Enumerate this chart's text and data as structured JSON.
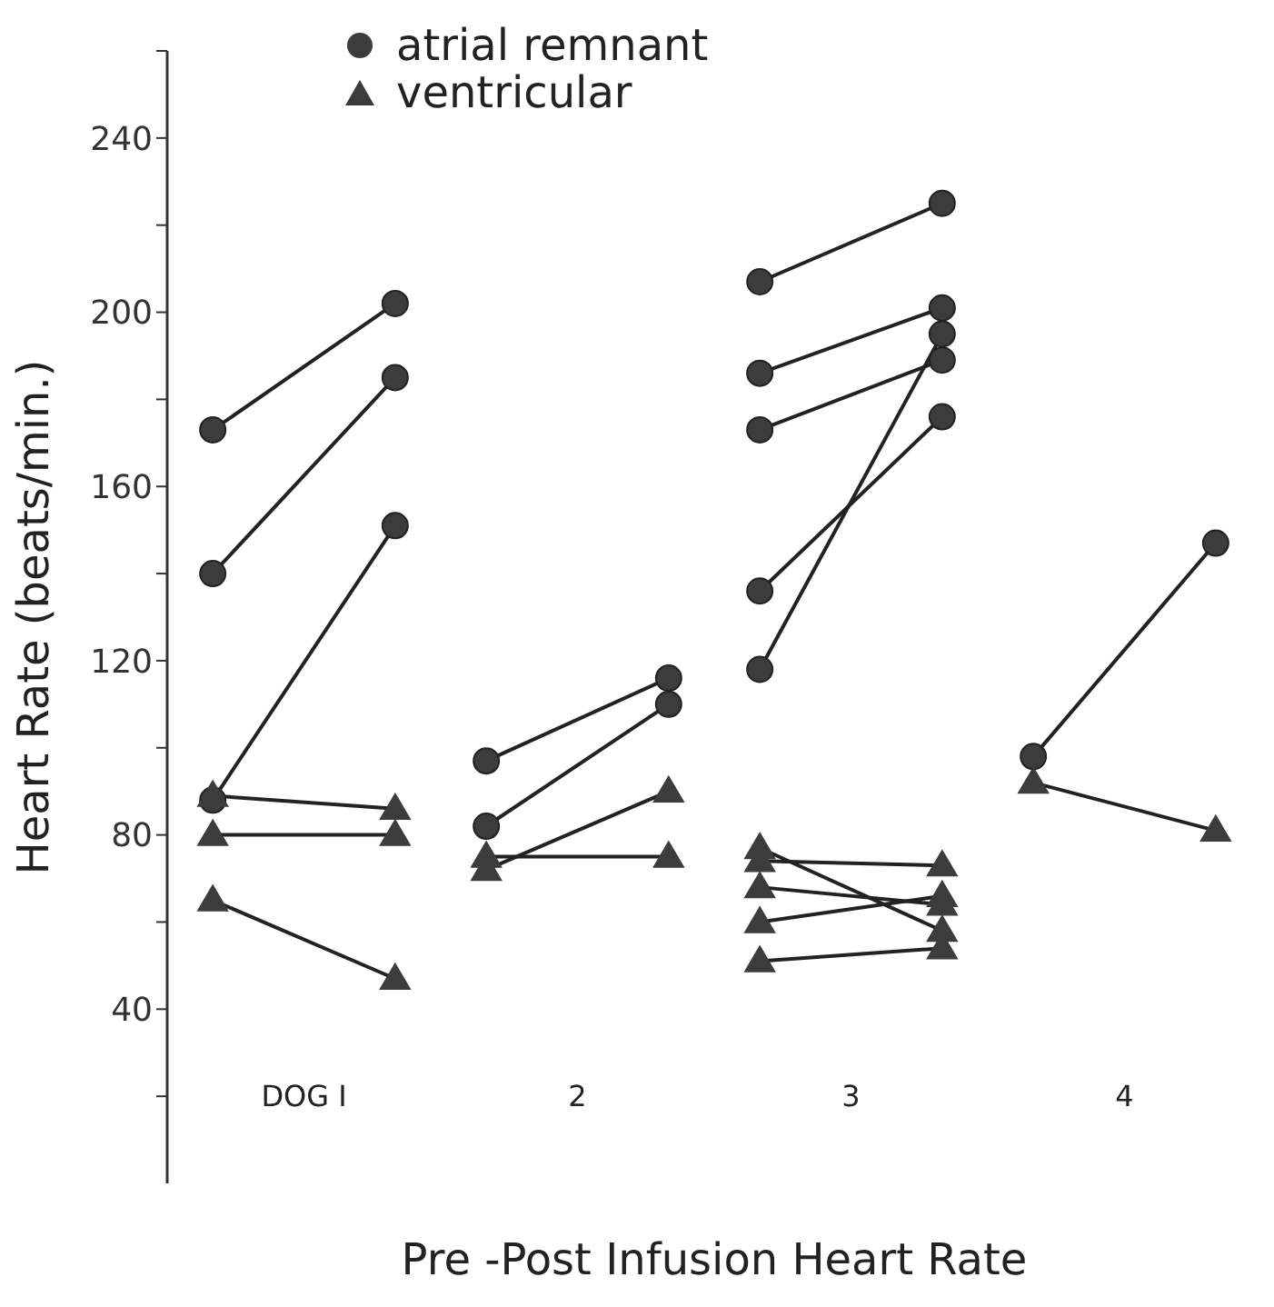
{
  "chart_data": {
    "type": "line",
    "xlabel": "Pre -Post  Infusion  Heart Rate",
    "ylabel": "Heart Rate  (beats/min.)",
    "categories": [
      null,
      "DOG I",
      null,
      null,
      "2",
      null,
      null,
      "3",
      null,
      null,
      "4",
      null
    ],
    "ylim": [
      0,
      260
    ],
    "yticks": [
      {
        "value": 20,
        "label": null
      },
      40,
      {
        "value": 60,
        "label": null
      },
      80,
      {
        "value": 100,
        "label": null
      },
      120,
      {
        "value": 140,
        "label": null
      },
      160,
      {
        "value": 180,
        "label": null
      },
      200,
      {
        "value": 220,
        "label": null
      },
      240,
      {
        "value": 260,
        "label": null
      }
    ],
    "legend": "top left",
    "line_style": "solid",
    "series": [
      {
        "name": "atrial remnant",
        "color": "#3c3c3c",
        "marker": "circle",
        "values": [
          173,
          null,
          202,
          null,
          null,
          null,
          null,
          null,
          null,
          null,
          null,
          null
        ]
      },
      {
        "color": "#3c3c3c",
        "marker": "circle",
        "values": [
          140,
          null,
          185,
          null,
          null,
          null,
          null,
          null,
          null,
          null,
          null,
          null
        ]
      },
      {
        "color": "#3c3c3c",
        "marker": "circle",
        "values": [
          88,
          null,
          151,
          null,
          null,
          null,
          null,
          null,
          null,
          null,
          null,
          null
        ]
      },
      {
        "color": "#3c3c3c",
        "marker": "circle",
        "values": [
          null,
          null,
          null,
          97,
          null,
          116,
          null,
          null,
          null,
          null,
          null,
          null
        ]
      },
      {
        "color": "#3c3c3c",
        "marker": "circle",
        "values": [
          null,
          null,
          null,
          82,
          null,
          110,
          null,
          null,
          null,
          null,
          null,
          null
        ]
      },
      {
        "color": "#3c3c3c",
        "marker": "circle",
        "values": [
          null,
          null,
          null,
          null,
          null,
          null,
          207,
          null,
          225,
          null,
          null,
          null
        ]
      },
      {
        "color": "#3c3c3c",
        "marker": "circle",
        "values": [
          null,
          null,
          null,
          null,
          null,
          null,
          186,
          null,
          201,
          null,
          null,
          null
        ]
      },
      {
        "color": "#3c3c3c",
        "marker": "circle",
        "values": [
          null,
          null,
          null,
          null,
          null,
          null,
          173,
          null,
          189,
          null,
          null,
          null
        ]
      },
      {
        "color": "#3c3c3c",
        "marker": "circle",
        "values": [
          null,
          null,
          null,
          null,
          null,
          null,
          136,
          null,
          176,
          null,
          null,
          null
        ]
      },
      {
        "color": "#3c3c3c",
        "marker": "circle",
        "values": [
          null,
          null,
          null,
          null,
          null,
          null,
          118,
          null,
          195,
          null,
          null,
          null
        ]
      },
      {
        "color": "#3c3c3c",
        "marker": "circle",
        "values": [
          null,
          null,
          null,
          null,
          null,
          null,
          null,
          null,
          null,
          98,
          null,
          147
        ]
      },
      {
        "name": "ventricular",
        "color": "#3c3c3c",
        "marker": "triangle",
        "values": [
          89,
          null,
          86,
          null,
          null,
          null,
          null,
          null,
          null,
          null,
          null,
          null
        ]
      },
      {
        "color": "#3c3c3c",
        "marker": "triangle",
        "values": [
          80,
          null,
          80,
          null,
          null,
          null,
          null,
          null,
          null,
          null,
          null,
          null
        ]
      },
      {
        "color": "#3c3c3c",
        "marker": "triangle",
        "values": [
          65,
          null,
          47,
          null,
          null,
          null,
          null,
          null,
          null,
          null,
          null,
          null
        ]
      },
      {
        "color": "#3c3c3c",
        "marker": "triangle",
        "values": [
          null,
          null,
          null,
          75,
          null,
          75,
          null,
          null,
          null,
          null,
          null,
          null
        ]
      },
      {
        "color": "#3c3c3c",
        "marker": "triangle",
        "values": [
          null,
          null,
          null,
          72,
          null,
          90,
          null,
          null,
          null,
          null,
          null,
          null
        ]
      },
      {
        "color": "#3c3c3c",
        "marker": "triangle",
        "values": [
          null,
          null,
          null,
          null,
          null,
          null,
          77,
          null,
          58,
          null,
          null,
          null
        ]
      },
      {
        "color": "#3c3c3c",
        "marker": "triangle",
        "values": [
          null,
          null,
          null,
          null,
          null,
          null,
          74,
          null,
          73,
          null,
          null,
          null
        ]
      },
      {
        "color": "#3c3c3c",
        "marker": "triangle",
        "values": [
          null,
          null,
          null,
          null,
          null,
          null,
          68,
          null,
          64,
          null,
          null,
          null
        ]
      },
      {
        "color": "#3c3c3c",
        "marker": "triangle",
        "values": [
          null,
          null,
          null,
          null,
          null,
          null,
          60,
          null,
          66,
          null,
          null,
          null
        ]
      },
      {
        "color": "#3c3c3c",
        "marker": "triangle",
        "values": [
          null,
          null,
          null,
          null,
          null,
          null,
          51,
          null,
          54,
          null,
          null,
          null
        ]
      },
      {
        "color": "#3c3c3c",
        "marker": "triangle",
        "values": [
          null,
          null,
          null,
          null,
          null,
          null,
          null,
          null,
          null,
          92,
          null,
          81
        ]
      }
    ]
  }
}
